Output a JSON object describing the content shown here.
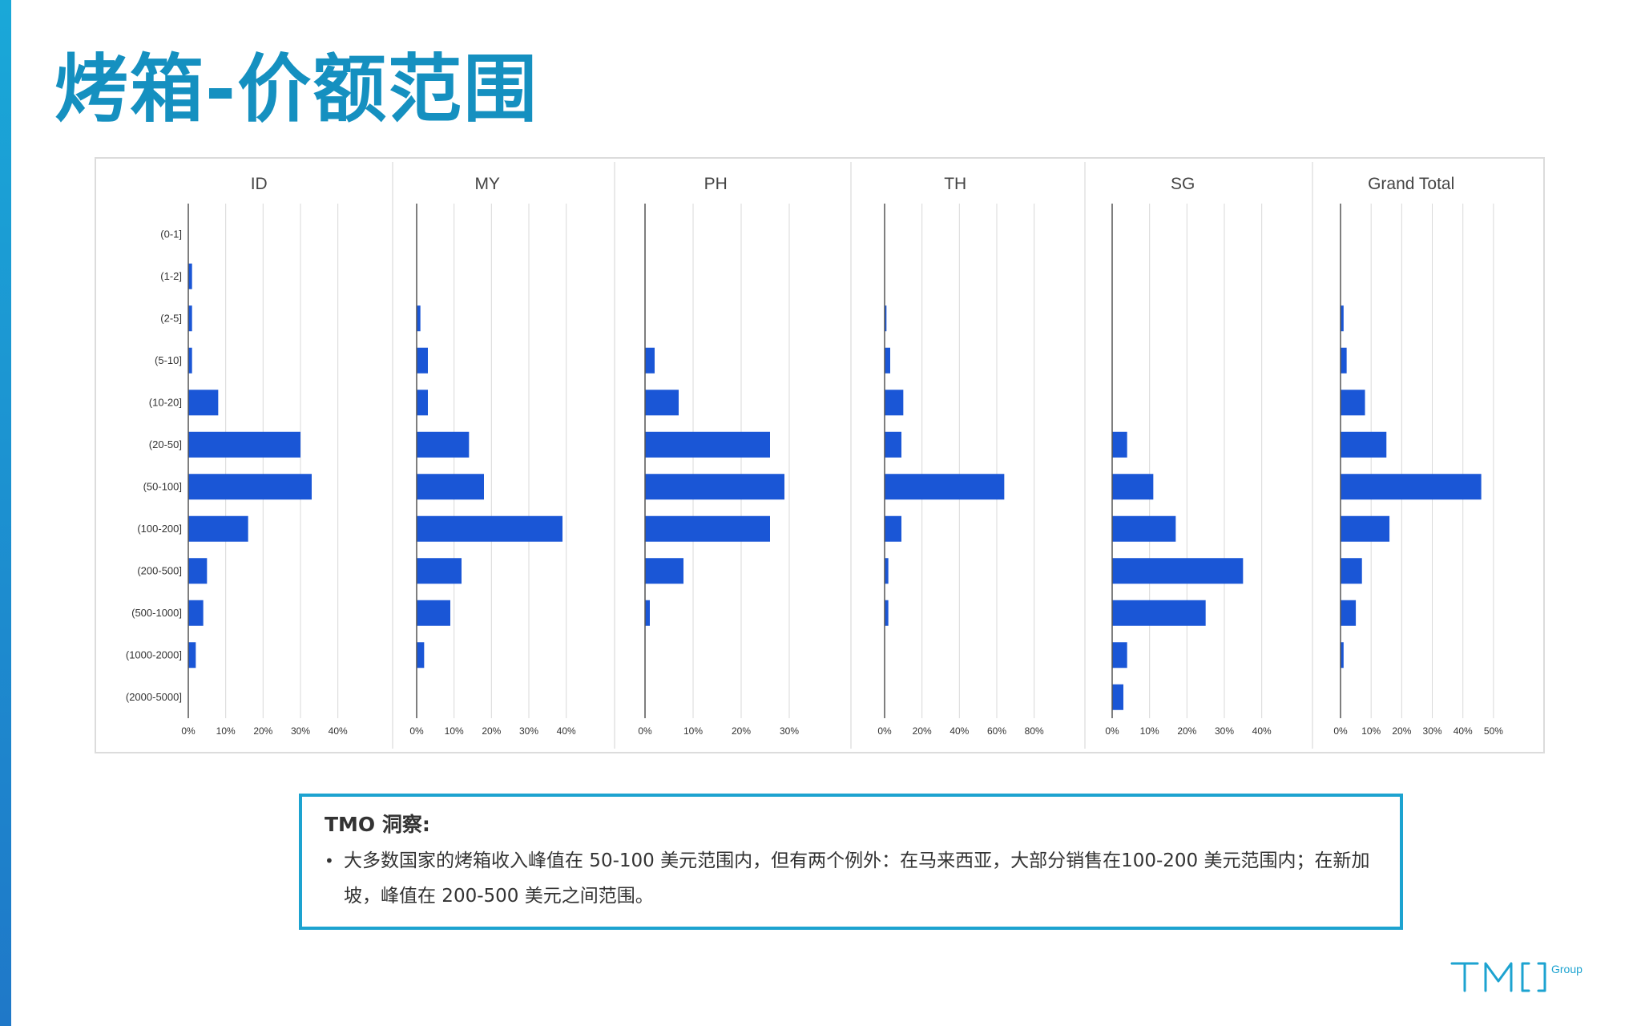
{
  "page": {
    "title": "烤箱-价额范围"
  },
  "chart_data": {
    "type": "bar",
    "orientation": "horizontal",
    "layout": "small-multiples",
    "categories": [
      "(0-1]",
      "(1-2]",
      "(2-5]",
      "(5-10]",
      "(10-20]",
      "(20-50]",
      "(50-100]",
      "(100-200]",
      "(200-500]",
      "(500-1000]",
      "(1000-2000]",
      "(2000-5000]"
    ],
    "panels": [
      {
        "title": "ID",
        "xlim": [
          0,
          45
        ],
        "ticks": [
          "0%",
          "10%",
          "20%",
          "30%",
          "40%"
        ],
        "tick_values": [
          0,
          10,
          20,
          30,
          40
        ],
        "values": [
          0,
          1,
          1,
          1,
          8,
          30,
          33,
          16,
          5,
          4,
          2,
          0
        ]
      },
      {
        "title": "MY",
        "xlim": [
          0,
          45
        ],
        "ticks": [
          "0%",
          "10%",
          "20%",
          "30%",
          "40%"
        ],
        "tick_values": [
          0,
          10,
          20,
          30,
          40
        ],
        "values": [
          0,
          0,
          1,
          3,
          3,
          14,
          18,
          39,
          12,
          9,
          2,
          0
        ]
      },
      {
        "title": "PH",
        "xlim": [
          0,
          35
        ],
        "ticks": [
          "0%",
          "10%",
          "20%",
          "30%"
        ],
        "tick_values": [
          0,
          10,
          20,
          30
        ],
        "values": [
          0,
          0,
          0,
          2,
          7,
          26,
          29,
          26,
          8,
          1,
          0,
          0
        ]
      },
      {
        "title": "TH",
        "xlim": [
          0,
          90
        ],
        "ticks": [
          "0%",
          "20%",
          "40%",
          "60%",
          "80%"
        ],
        "tick_values": [
          0,
          20,
          40,
          60,
          80
        ],
        "values": [
          0,
          0,
          1,
          3,
          10,
          9,
          64,
          9,
          2,
          2,
          0,
          0
        ]
      },
      {
        "title": "SG",
        "xlim": [
          0,
          45
        ],
        "ticks": [
          "0%",
          "10%",
          "20%",
          "30%",
          "40%"
        ],
        "tick_values": [
          0,
          10,
          20,
          30,
          40
        ],
        "values": [
          0,
          0,
          0,
          0,
          0,
          4,
          11,
          17,
          35,
          25,
          4,
          3
        ]
      },
      {
        "title": "Grand Total",
        "xlim": [
          0,
          55
        ],
        "ticks": [
          "0%",
          "10%",
          "20%",
          "30%",
          "40%",
          "50%"
        ],
        "tick_values": [
          0,
          10,
          20,
          30,
          40,
          50
        ],
        "values": [
          0,
          0,
          1,
          2,
          8,
          15,
          46,
          16,
          7,
          5,
          1,
          0
        ]
      }
    ],
    "bar_color": "#1a56d6",
    "grid_color": "#d9d9d9",
    "axis_color": "#555555",
    "grid": true,
    "legend": "none"
  },
  "insight": {
    "title": "TMO 洞察:",
    "bullet": "•",
    "text": "大多数国家的烤箱收入峰值在 50-100 美元范围内，但有两个例外：在马来西亚，大部分销售在100-200 美元范围内；在新加坡，峰值在 200-500 美元之间范围。"
  },
  "logo": {
    "text": "TMO",
    "suffix": "Group",
    "color": "#1da3d0"
  }
}
